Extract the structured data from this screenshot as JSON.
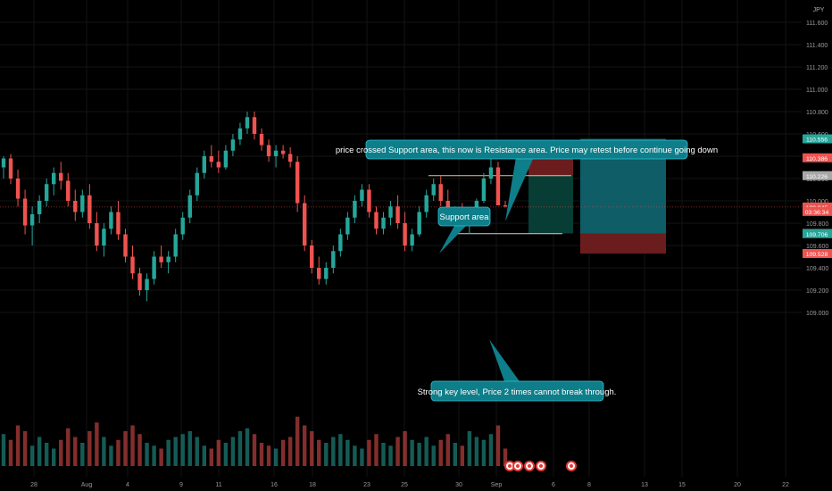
{
  "chart_data": {
    "type": "candlestick",
    "currency": "JPY",
    "ylim": [
      108.95,
      111.7
    ],
    "price_axis_ticks": [
      "111.600",
      "111.400",
      "111.200",
      "111.000",
      "110.800",
      "110.600",
      "110.400",
      "110.200",
      "110.000",
      "109.800",
      "109.600",
      "109.400",
      "109.200",
      "109.000"
    ],
    "date_axis_ticks": [
      "28",
      "Aug",
      "4",
      "9",
      "11",
      "16",
      "18",
      "23",
      "25",
      "30",
      "Sep",
      "6",
      "8",
      "13",
      "15",
      "20",
      "22"
    ],
    "price_tags": [
      {
        "label": "110.556",
        "value": 110.556,
        "color": "#26a69a"
      },
      {
        "label": "110.386",
        "value": 110.386,
        "color": "#ef5350"
      },
      {
        "label": "110.226",
        "value": 110.226,
        "color": "#a8a8a8"
      },
      {
        "label": "109.945",
        "value": 109.945,
        "color": "#ef5350"
      },
      {
        "label": "03:36:34",
        "value": 109.905,
        "color": "#ef5350"
      },
      {
        "label": "109.708",
        "value": 109.708,
        "color": "#a8a8a8"
      },
      {
        "label": "109.706",
        "value": 109.706,
        "color": "#26a69a"
      },
      {
        "label": "109.528",
        "value": 109.528,
        "color": "#ef5350"
      }
    ],
    "levels": {
      "resistance": 110.226,
      "support": 109.706,
      "last_price": 109.945
    },
    "annotations": [
      {
        "text": "price crossed Support area, this now is Resistance area. Price may retest before continue going down"
      },
      {
        "text": "Support area"
      },
      {
        "text": "Strong key level, Price 2 times cannot break through."
      }
    ],
    "positions": [
      {
        "side": "short",
        "entry": 110.226,
        "stop": 110.386,
        "target": 109.708
      },
      {
        "side": "long",
        "entry": 109.708,
        "stop": 109.528,
        "target": 110.556
      }
    ],
    "colors": {
      "up": "#26a69a",
      "down": "#ef5350",
      "label_bg": "#0e7e8a",
      "grid": "#141414"
    },
    "candles": [
      [
        110.3,
        110.4,
        110.2,
        110.38
      ],
      [
        110.38,
        110.42,
        110.15,
        110.2
      ],
      [
        110.2,
        110.28,
        109.95,
        110.02
      ],
      [
        110.02,
        110.1,
        109.7,
        109.78
      ],
      [
        109.78,
        109.95,
        109.6,
        109.88
      ],
      [
        109.88,
        110.05,
        109.8,
        110.0
      ],
      [
        110.0,
        110.2,
        109.95,
        110.15
      ],
      [
        110.15,
        110.3,
        110.05,
        110.25
      ],
      [
        110.25,
        110.35,
        110.1,
        110.18
      ],
      [
        110.18,
        110.25,
        109.95,
        110.0
      ],
      [
        110.0,
        110.1,
        109.82,
        109.9
      ],
      [
        109.9,
        110.1,
        109.85,
        110.05
      ],
      [
        110.05,
        110.15,
        109.75,
        109.8
      ],
      [
        109.8,
        109.9,
        109.55,
        109.6
      ],
      [
        109.6,
        109.8,
        109.5,
        109.75
      ],
      [
        109.75,
        109.95,
        109.7,
        109.9
      ],
      [
        109.9,
        110.0,
        109.65,
        109.7
      ],
      [
        109.7,
        109.75,
        109.45,
        109.5
      ],
      [
        109.5,
        109.6,
        109.3,
        109.35
      ],
      [
        109.35,
        109.4,
        109.15,
        109.2
      ],
      [
        109.2,
        109.35,
        109.1,
        109.3
      ],
      [
        109.3,
        109.55,
        109.25,
        109.5
      ],
      [
        109.5,
        109.6,
        109.4,
        109.45
      ],
      [
        109.45,
        109.55,
        109.35,
        109.5
      ],
      [
        109.5,
        109.75,
        109.45,
        109.7
      ],
      [
        109.7,
        109.9,
        109.65,
        109.85
      ],
      [
        109.85,
        110.1,
        109.8,
        110.05
      ],
      [
        110.05,
        110.3,
        110.0,
        110.25
      ],
      [
        110.25,
        110.45,
        110.2,
        110.4
      ],
      [
        110.4,
        110.5,
        110.3,
        110.35
      ],
      [
        110.35,
        110.45,
        110.25,
        110.3
      ],
      [
        110.3,
        110.5,
        110.28,
        110.45
      ],
      [
        110.45,
        110.6,
        110.4,
        110.55
      ],
      [
        110.55,
        110.7,
        110.5,
        110.65
      ],
      [
        110.65,
        110.8,
        110.6,
        110.75
      ],
      [
        110.75,
        110.8,
        110.55,
        110.6
      ],
      [
        110.6,
        110.65,
        110.45,
        110.5
      ],
      [
        110.5,
        110.55,
        110.35,
        110.4
      ],
      [
        110.4,
        110.5,
        110.3,
        110.45
      ],
      [
        110.45,
        110.5,
        110.38,
        110.42
      ],
      [
        110.42,
        110.48,
        110.3,
        110.35
      ],
      [
        110.35,
        110.4,
        109.9,
        109.98
      ],
      [
        109.98,
        110.05,
        109.55,
        109.6
      ],
      [
        109.6,
        109.65,
        109.35,
        109.4
      ],
      [
        109.4,
        109.5,
        109.25,
        109.3
      ],
      [
        109.3,
        109.45,
        109.25,
        109.4
      ],
      [
        109.4,
        109.6,
        109.35,
        109.55
      ],
      [
        109.55,
        109.75,
        109.5,
        109.7
      ],
      [
        109.7,
        109.9,
        109.65,
        109.85
      ],
      [
        109.85,
        110.05,
        109.8,
        110.0
      ],
      [
        110.0,
        110.15,
        109.95,
        110.1
      ],
      [
        110.1,
        110.15,
        109.85,
        109.9
      ],
      [
        109.9,
        109.95,
        109.7,
        109.75
      ],
      [
        109.75,
        109.9,
        109.7,
        109.85
      ],
      [
        109.85,
        110.0,
        109.78,
        109.95
      ],
      [
        109.95,
        110.05,
        109.75,
        109.8
      ],
      [
        109.8,
        109.9,
        109.55,
        109.6
      ],
      [
        109.6,
        109.75,
        109.55,
        109.7
      ],
      [
        109.7,
        109.95,
        109.68,
        109.9
      ],
      [
        109.9,
        110.1,
        109.85,
        110.05
      ],
      [
        110.05,
        110.2,
        110.0,
        110.15
      ],
      [
        110.15,
        110.22,
        109.95,
        110.0
      ],
      [
        110.0,
        110.1,
        109.8,
        109.85
      ],
      [
        109.85,
        109.95,
        109.75,
        109.92
      ],
      [
        109.92,
        109.98,
        109.78,
        109.82
      ],
      [
        109.82,
        109.9,
        109.7,
        109.88
      ],
      [
        109.88,
        110.02,
        109.85,
        110.0
      ],
      [
        110.0,
        110.25,
        109.98,
        110.2
      ],
      [
        110.2,
        110.4,
        110.15,
        110.3
      ],
      [
        110.3,
        110.35,
        109.96,
        109.96
      ],
      [
        109.96,
        110.0,
        109.94,
        109.95
      ]
    ],
    "volumes": [
      0.55,
      0.45,
      0.7,
      0.6,
      0.35,
      0.5,
      0.4,
      0.3,
      0.45,
      0.65,
      0.5,
      0.4,
      0.6,
      0.75,
      0.5,
      0.35,
      0.45,
      0.6,
      0.7,
      0.55,
      0.4,
      0.35,
      0.3,
      0.45,
      0.5,
      0.55,
      0.6,
      0.5,
      0.35,
      0.3,
      0.45,
      0.4,
      0.5,
      0.6,
      0.65,
      0.55,
      0.4,
      0.35,
      0.3,
      0.45,
      0.5,
      0.85,
      0.7,
      0.6,
      0.45,
      0.4,
      0.5,
      0.55,
      0.45,
      0.35,
      0.3,
      0.45,
      0.55,
      0.4,
      0.35,
      0.5,
      0.6,
      0.45,
      0.4,
      0.5,
      0.35,
      0.45,
      0.55,
      0.4,
      0.35,
      0.6,
      0.5,
      0.45,
      0.55,
      0.7,
      0.3
    ],
    "event_markers": 5
  }
}
